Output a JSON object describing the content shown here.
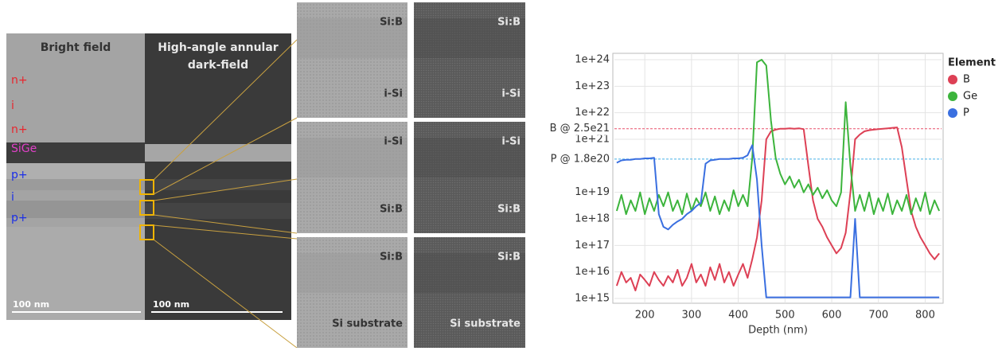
{
  "tem": {
    "bright_field": "Bright field",
    "haadf": [
      "High-angle annular",
      "dark-field"
    ],
    "layers": [
      {
        "label": "n+",
        "color": "#e8262e"
      },
      {
        "label": "i",
        "color": "#e8262e"
      },
      {
        "label": "n+",
        "color": "#e8262e"
      },
      {
        "label": "SiGe",
        "color": "#e040c8"
      },
      {
        "label": "p+",
        "color": "#1a2ee8"
      },
      {
        "label": "i",
        "color": "#1a2ee8"
      },
      {
        "label": "p+",
        "color": "#1a2ee8"
      }
    ],
    "scale_bars": [
      "100 nm",
      "100 nm"
    ],
    "tiles": [
      {
        "top": "Si:B",
        "bottom": "i-Si"
      },
      {
        "top": "i-Si",
        "bottom": "Si:B"
      },
      {
        "top": "Si:B",
        "bottom": "Si substrate"
      }
    ]
  },
  "chart_data": {
    "type": "line",
    "x_label": "Depth (nm)",
    "legend_title": "Element",
    "legend": "right",
    "log_y": true,
    "grid": true,
    "xlim": [
      135,
      835
    ],
    "ylim": [
      1000000000000000.0,
      1e+24
    ],
    "xticks": [
      200,
      300,
      400,
      500,
      600,
      700,
      800
    ],
    "yticks": [
      {
        "value": 1000000000000000.0,
        "label": "1e+15"
      },
      {
        "value": 1e+16,
        "label": "1e+16"
      },
      {
        "value": 1e+17,
        "label": "1e+17"
      },
      {
        "value": 1e+18,
        "label": "1e+18"
      },
      {
        "value": 1e+19,
        "label": "1e+19"
      },
      {
        "value": 1e+21,
        "label": "1e+21"
      },
      {
        "value": 1e+22,
        "label": "1e+22"
      },
      {
        "value": 1e+23,
        "label": "1e+23"
      },
      {
        "value": 1e+24,
        "label": "1e+24"
      }
    ],
    "ref_lines": [
      {
        "label": "B @ 2.5e21",
        "value": 2.5e+21,
        "color": "#e8506a"
      },
      {
        "label": "P @ 1.8e20",
        "value": 1.8e+20,
        "color": "#48b0e8"
      }
    ],
    "x": [
      140,
      150,
      160,
      170,
      180,
      190,
      200,
      210,
      220,
      230,
      240,
      250,
      260,
      270,
      280,
      290,
      300,
      310,
      320,
      330,
      340,
      350,
      360,
      370,
      380,
      390,
      400,
      410,
      420,
      430,
      440,
      450,
      460,
      470,
      480,
      490,
      500,
      510,
      520,
      530,
      540,
      550,
      560,
      570,
      580,
      590,
      600,
      610,
      620,
      630,
      640,
      650,
      660,
      670,
      680,
      690,
      700,
      710,
      720,
      730,
      740,
      750,
      760,
      770,
      780,
      790,
      800,
      810,
      820,
      830
    ],
    "series": [
      {
        "name": "B",
        "color": "#dd4055",
        "values": [
          3000000000000000.0,
          1e+16,
          4000000000000000.0,
          6000000000000000.0,
          2000000000000000.0,
          8000000000000000.0,
          5000000000000000.0,
          3000000000000000.0,
          1e+16,
          5000000000000000.0,
          3000000000000000.0,
          7000000000000000.0,
          4000000000000000.0,
          1.2e+16,
          3000000000000000.0,
          6000000000000000.0,
          2e+16,
          4000000000000000.0,
          8000000000000000.0,
          3000000000000000.0,
          1.5e+16,
          5000000000000000.0,
          2e+16,
          4000000000000000.0,
          1e+16,
          3000000000000000.0,
          8000000000000000.0,
          2e+16,
          6000000000000000.0,
          3e+16,
          2e+17,
          5e+18,
          1e+21,
          2e+21,
          2.3e+21,
          2.5e+21,
          2.5e+21,
          2.6e+21,
          2.5e+21,
          2.6e+21,
          2.4e+21,
          1e+20,
          5e+18,
          1e+18,
          5e+17,
          2e+17,
          1e+17,
          5e+16,
          8e+16,
          3e+17,
          1e+19,
          1e+21,
          1.5e+21,
          2e+21,
          2.2e+21,
          2.3e+21,
          2.4e+21,
          2.5e+21,
          2.6e+21,
          2.7e+21,
          2.8e+21,
          5e+20,
          3e+19,
          2e+18,
          5e+17,
          2e+17,
          1e+17,
          5e+16,
          3e+16,
          5e+16
        ]
      },
      {
        "name": "Ge",
        "color": "#3cb43c",
        "values": [
          2e+18,
          8e+18,
          1.5e+18,
          5e+18,
          2e+18,
          1e+19,
          1.5e+18,
          6e+18,
          2e+18,
          8e+18,
          3e+18,
          1e+19,
          2e+18,
          5e+18,
          1.5e+18,
          9e+18,
          2e+18,
          6e+18,
          3e+18,
          1e+19,
          2e+18,
          7e+18,
          1.5e+18,
          5e+18,
          2e+18,
          1.2e+19,
          3e+18,
          8e+18,
          3e+18,
          2e+20,
          8e+23,
          1e+24,
          6e+23,
          5e+21,
          2e+20,
          5e+19,
          2e+19,
          4e+19,
          1.5e+19,
          3e+19,
          1e+19,
          2e+19,
          8e+18,
          1.5e+19,
          6e+18,
          1.2e+19,
          5e+18,
          3e+18,
          1e+19,
          2.5e+22,
          1e+20,
          2e+18,
          8e+18,
          2e+18,
          1e+19,
          1.5e+18,
          6e+18,
          2e+18,
          9e+18,
          1.5e+18,
          5e+18,
          2e+18,
          8e+18,
          1.5e+18,
          6e+18,
          2e+18,
          1e+19,
          1.5e+18,
          5e+18,
          2e+18
        ]
      },
      {
        "name": "P",
        "color": "#3a6fe0",
        "values": [
          1.3e+20,
          1.6e+20,
          1.7e+20,
          1.7e+20,
          1.8e+20,
          1.8e+20,
          1.9e+20,
          1.9e+20,
          2e+20,
          1.5e+18,
          5e+17,
          4e+17,
          6e+17,
          8e+17,
          1e+18,
          1.5e+18,
          2e+18,
          3e+18,
          4e+18,
          1.2e+20,
          1.6e+20,
          1.7e+20,
          1.8e+20,
          1.8e+20,
          1.8e+20,
          1.9e+20,
          1.9e+20,
          2e+20,
          2.5e+20,
          6e+20,
          3e+19,
          1e+17,
          1100000000000000.0,
          1100000000000000.0,
          1100000000000000.0,
          1100000000000000.0,
          1100000000000000.0,
          1100000000000000.0,
          1100000000000000.0,
          1100000000000000.0,
          1100000000000000.0,
          1100000000000000.0,
          1100000000000000.0,
          1100000000000000.0,
          1100000000000000.0,
          1100000000000000.0,
          1100000000000000.0,
          1100000000000000.0,
          1100000000000000.0,
          1100000000000000.0,
          1100000000000000.0,
          1e+18,
          1100000000000000.0,
          1100000000000000.0,
          1100000000000000.0,
          1100000000000000.0,
          1100000000000000.0,
          1100000000000000.0,
          1100000000000000.0,
          1100000000000000.0,
          1100000000000000.0,
          1100000000000000.0,
          1100000000000000.0,
          1100000000000000.0,
          1100000000000000.0,
          1100000000000000.0,
          1100000000000000.0,
          1100000000000000.0,
          1100000000000000.0,
          1100000000000000.0
        ]
      }
    ]
  }
}
